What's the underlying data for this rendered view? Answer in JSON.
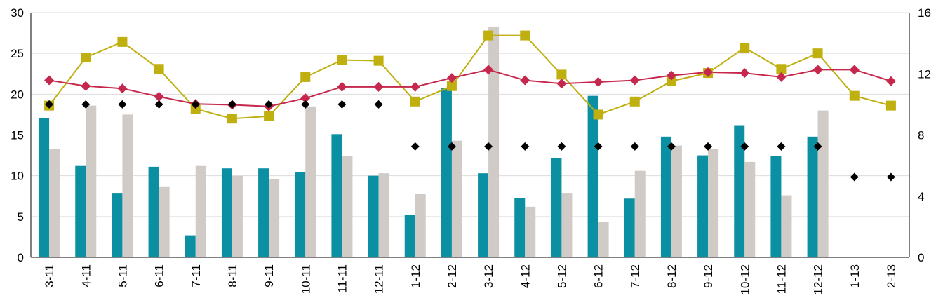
{
  "chart_data": {
    "type": "bar",
    "categories": [
      "3-11",
      "4-11",
      "5-11",
      "6-11",
      "7-11",
      "8-11",
      "9-11",
      "10-11",
      "11-11",
      "12-11",
      "1-12",
      "2-12",
      "3-12",
      "4-12",
      "5-12",
      "6-12",
      "7-12",
      "8-12",
      "9-12",
      "10-12",
      "11-12",
      "12-12",
      "1-13",
      "2-13"
    ],
    "ylim": [
      0,
      30
    ],
    "yticks": [
      0,
      5,
      10,
      15,
      20,
      25,
      30
    ],
    "y2lim": [
      0,
      16
    ],
    "y2ticks": [
      0,
      4,
      8,
      12,
      16
    ],
    "grid": true,
    "legend": "none",
    "series": [
      {
        "type": "bar",
        "axis": "left",
        "color": "#0a8fa3",
        "values": [
          17.1,
          11.2,
          7.9,
          11.1,
          2.7,
          10.9,
          10.9,
          10.4,
          15.1,
          10.0,
          5.2,
          20.8,
          10.3,
          7.3,
          12.2,
          19.8,
          7.2,
          14.8,
          12.5,
          16.2,
          12.4,
          14.8,
          null,
          null
        ]
      },
      {
        "type": "bar",
        "axis": "left",
        "color": "#d0cbc6",
        "values": [
          13.3,
          18.6,
          17.5,
          8.7,
          11.2,
          10.0,
          9.6,
          18.5,
          12.4,
          10.3,
          7.8,
          14.3,
          28.2,
          6.2,
          7.9,
          4.3,
          10.6,
          13.7,
          13.3,
          11.7,
          7.6,
          18.0,
          null,
          null
        ]
      },
      {
        "type": "line",
        "axis": "left",
        "marker": "square",
        "color": "#bfb010",
        "values": [
          18.6,
          24.5,
          26.4,
          23.1,
          18.2,
          17.0,
          17.3,
          22.1,
          24.2,
          24.1,
          19.1,
          21.0,
          27.2,
          27.2,
          22.4,
          17.5,
          19.1,
          21.6,
          22.6,
          25.7,
          23.1,
          25.0,
          19.8,
          18.6
        ]
      },
      {
        "type": "line",
        "axis": "left",
        "marker": "diamond",
        "color": "#c6284d",
        "values": [
          21.7,
          21.0,
          20.7,
          19.7,
          18.8,
          18.7,
          18.5,
          19.5,
          20.9,
          20.9,
          20.9,
          22.0,
          23.0,
          21.7,
          21.3,
          21.5,
          21.7,
          22.3,
          22.7,
          22.6,
          22.1,
          23.0,
          23.0,
          21.6
        ]
      },
      {
        "type": "scatter",
        "axis": "right",
        "marker": "diamond",
        "color": "#000000",
        "values": [
          10,
          10,
          10,
          10,
          10,
          10,
          10,
          10,
          10,
          10,
          7.25,
          7.25,
          7.25,
          7.25,
          7.25,
          7.25,
          7.25,
          7.25,
          7.25,
          7.25,
          7.25,
          7.25,
          5.25,
          5.25
        ]
      }
    ]
  }
}
